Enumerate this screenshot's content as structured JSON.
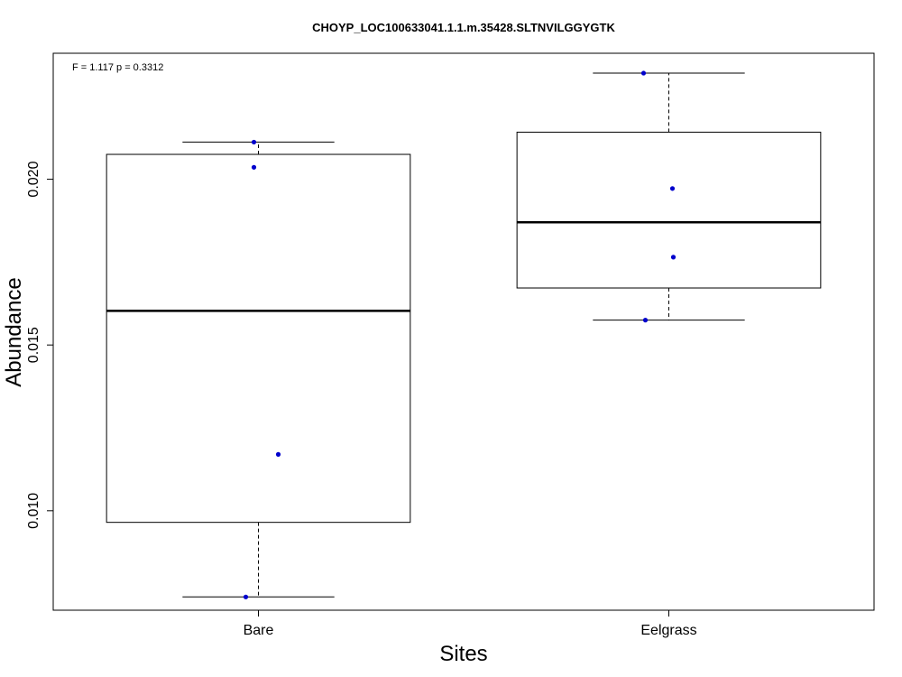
{
  "chart_data": {
    "type": "box",
    "title": "CHOYP_LOC100633041.1.1.m.35428.SLTNVILGGYGTK",
    "annotation": "F = 1.117 p = 0.3312",
    "xlabel": "Sites",
    "ylabel": "Abundance",
    "categories": [
      "Bare",
      "Eelgrass"
    ],
    "y_ticks": [
      0.01,
      0.015,
      0.02
    ],
    "y_tick_labels": [
      "0.010",
      "0.015",
      "0.020"
    ],
    "ylim": [
      0.007,
      0.0238
    ],
    "point_color": "#0000cc",
    "boxes": [
      {
        "name": "Bare",
        "whisker_low": 0.0074,
        "q1": 0.00965,
        "median": 0.01603,
        "q3": 0.02075,
        "whisker_high": 0.02112,
        "points": [
          0.0074,
          0.0117,
          0.02036,
          0.02112
        ]
      },
      {
        "name": "Eelgrass",
        "whisker_low": 0.01575,
        "q1": 0.01672,
        "median": 0.0187,
        "q3": 0.02142,
        "whisker_high": 0.0232,
        "points": [
          0.01575,
          0.01765,
          0.01972,
          0.0232
        ]
      }
    ]
  }
}
